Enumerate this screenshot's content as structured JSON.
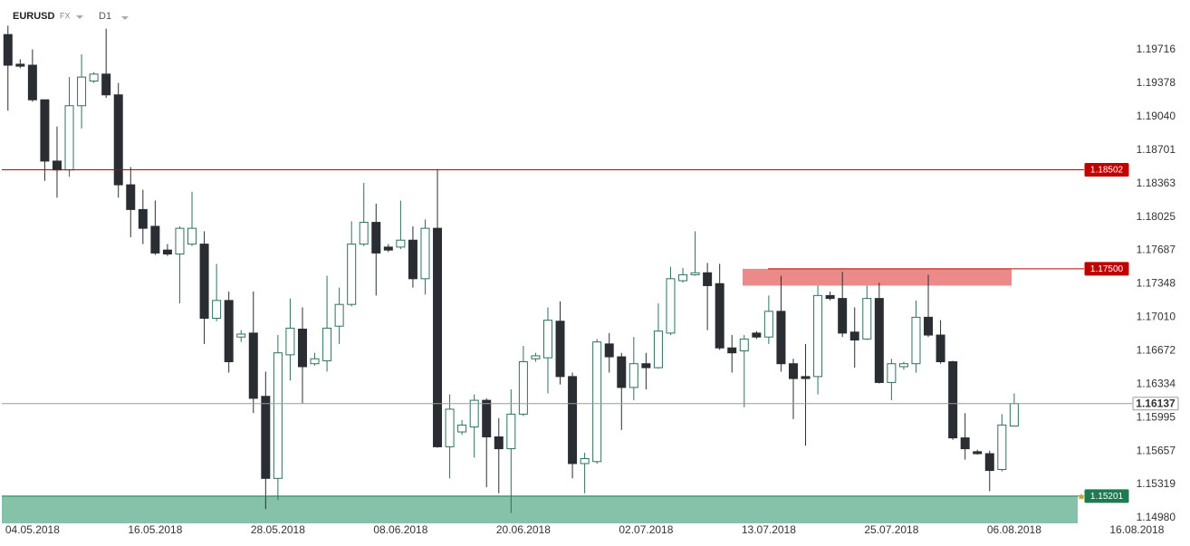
{
  "header": {
    "symbol": "EURUSD",
    "market": "FX",
    "timeframe": "D1"
  },
  "chart_data": {
    "type": "candlestick",
    "categories": [
      null,
      null,
      "04.05.2018",
      null,
      null,
      null,
      null,
      null,
      null,
      null,
      null,
      null,
      "16.05.2018",
      null,
      null,
      null,
      null,
      null,
      null,
      null,
      null,
      null,
      "28.05.2018",
      null,
      null,
      null,
      null,
      null,
      null,
      null,
      null,
      null,
      "08.06.2018",
      null,
      null,
      null,
      null,
      null,
      null,
      null,
      null,
      null,
      "20.06.2018",
      null,
      null,
      null,
      null,
      null,
      null,
      null,
      null,
      null,
      "02.07.2018",
      null,
      null,
      null,
      null,
      null,
      null,
      null,
      null,
      null,
      "13.07.2018",
      null,
      null,
      null,
      null,
      null,
      null,
      null,
      null,
      null,
      "25.07.2018",
      null,
      null,
      null,
      null,
      null,
      null,
      null,
      null,
      null,
      "06.08.2018",
      null,
      null,
      null,
      null,
      null,
      null,
      null,
      null,
      null,
      "16.08.2018",
      null,
      null
    ],
    "open": [
      1.1987,
      1.1957,
      1.1956,
      1.1921,
      1.1859,
      1.185,
      1.1915,
      1.194,
      1.1947,
      1.1926,
      1.1835,
      1.181,
      1.1793,
      1.1769,
      1.1765,
      1.1775,
      1.1775,
      1.17,
      1.1718,
      1.1681,
      1.1685,
      1.1621,
      1.1538,
      1.1663,
      1.1689,
      1.1654,
      1.1657,
      1.1692,
      1.1714,
      1.1775,
      1.1797,
      1.1772,
      1.1772,
      1.1779,
      1.174,
      1.1791,
      1.157,
      1.1585,
      1.159,
      1.1617,
      1.158,
      1.1568,
      1.1603,
      1.1659,
      1.166,
      1.1697,
      1.1641,
      1.1553,
      1.1555,
      1.1674,
      1.1661,
      1.163,
      1.1654,
      1.165,
      1.1685,
      1.1738,
      1.1744,
      1.1746,
      1.1735,
      1.167,
      1.1667,
      1.1685,
      1.1681,
      1.1707,
      1.1654,
      1.1641,
      1.1641,
      1.1723,
      1.172,
      1.1686,
      1.1679,
      1.172,
      1.1635,
      1.1651,
      1.1654,
      1.1701,
      1.1683,
      1.1656,
      1.1579,
      1.1565,
      1.1563,
      1.1547,
      1.1591,
      null,
      null,
      null,
      null,
      null,
      null,
      null,
      null,
      null,
      null,
      null,
      null
    ],
    "high": [
      1.1996,
      1.1962,
      1.1972,
      1.1921,
      1.1894,
      1.1944,
      1.1967,
      1.1949,
      1.1993,
      1.1938,
      1.1853,
      1.183,
      1.1819,
      1.1775,
      1.1793,
      1.1828,
      1.1788,
      1.1755,
      1.1727,
      1.1688,
      1.1727,
      1.1646,
      1.1683,
      1.172,
      1.1711,
      1.1665,
      1.1743,
      1.1731,
      1.1798,
      1.1837,
      1.1816,
      1.1775,
      1.1819,
      1.1793,
      1.18,
      1.1851,
      1.1623,
      1.1597,
      1.1623,
      1.1619,
      1.1599,
      1.1628,
      1.1672,
      1.1665,
      1.1711,
      1.1717,
      1.1645,
      1.1564,
      1.1679,
      1.1685,
      1.1665,
      1.1681,
      1.1665,
      1.1715,
      1.1752,
      1.1751,
      1.1788,
      1.1756,
      1.1755,
      1.1683,
      1.1683,
      1.1687,
      1.1723,
      1.1743,
      1.1659,
      1.1674,
      1.1733,
      1.1727,
      1.1747,
      1.1711,
      1.1733,
      1.1736,
      1.1659,
      1.1656,
      1.1718,
      1.1744,
      1.1698,
      1.1657,
      1.1604,
      1.1567,
      1.1566,
      1.1603,
      1.1624,
      null,
      null,
      null,
      null,
      null,
      null,
      null,
      null,
      null,
      null,
      null,
      null
    ],
    "low": [
      1.191,
      1.1953,
      1.1919,
      1.1839,
      1.1822,
      1.1843,
      1.1892,
      1.1938,
      1.1923,
      1.1822,
      1.1782,
      1.1775,
      1.1764,
      1.1763,
      1.1715,
      1.1773,
      1.1674,
      1.1697,
      1.1645,
      1.1676,
      1.1604,
      1.1507,
      1.1516,
      1.1637,
      1.1614,
      1.1652,
      1.1646,
      1.1674,
      1.1712,
      1.1773,
      1.1723,
      1.1767,
      1.177,
      1.1731,
      1.1724,
      1.1569,
      1.1538,
      1.1582,
      1.1559,
      1.1529,
      1.1523,
      1.1503,
      1.1601,
      1.1656,
      1.1624,
      1.1633,
      1.1538,
      1.1523,
      1.1553,
      1.1645,
      1.1587,
      1.1617,
      1.1628,
      1.1649,
      1.1683,
      1.1736,
      1.1743,
      1.1688,
      1.1668,
      1.1645,
      1.161,
      1.1679,
      1.1674,
      1.1646,
      1.1598,
      1.1571,
      1.1623,
      1.1718,
      1.1681,
      1.165,
      1.1678,
      1.1634,
      1.1617,
      1.1648,
      1.1645,
      1.1681,
      1.1654,
      1.1577,
      1.1557,
      1.1562,
      1.1525,
      1.1545,
      1.1591,
      null,
      null,
      null,
      null,
      null,
      null,
      null,
      null,
      null,
      null,
      null,
      null
    ],
    "close": [
      1.1956,
      1.1955,
      1.1921,
      1.1859,
      1.185,
      1.1915,
      1.1944,
      1.1947,
      1.1926,
      1.1835,
      1.181,
      1.1791,
      1.1766,
      1.1765,
      1.1791,
      1.1791,
      1.17,
      1.1718,
      1.1656,
      1.1684,
      1.1619,
      1.1538,
      1.1665,
      1.169,
      1.1651,
      1.1659,
      1.169,
      1.1714,
      1.1775,
      1.1797,
      1.1766,
      1.1769,
      1.1779,
      1.174,
      1.1791,
      1.157,
      1.1608,
      1.1592,
      1.1617,
      1.158,
      1.1568,
      1.1603,
      1.1656,
      1.1662,
      1.1698,
      1.1641,
      1.1553,
      1.1558,
      1.1676,
      1.1661,
      1.163,
      1.1654,
      1.165,
      1.1687,
      1.174,
      1.1744,
      1.1746,
      1.1733,
      1.167,
      1.1665,
      1.1679,
      1.1681,
      1.1707,
      1.1654,
      1.1639,
      1.1639,
      1.1723,
      1.172,
      1.1685,
      1.1678,
      1.172,
      1.1635,
      1.1654,
      1.1654,
      1.1701,
      1.1683,
      1.1656,
      1.1579,
      1.1568,
      1.1563,
      1.1546,
      1.1592,
      1.16137,
      null,
      null,
      null,
      null,
      null,
      null,
      null,
      null,
      null,
      null,
      null,
      null
    ],
    "up_color": "#2f7060",
    "down_color": "#2a2e33",
    "ylim": [
      1.14925,
      1.20128
    ],
    "yticks": [
      1.19716,
      1.19378,
      {
        "value": 1.1904,
        "label": "1.19040"
      },
      1.18701,
      1.18363,
      1.18025,
      1.17687,
      1.17348,
      {
        "value": 1.1701,
        "label": "1.17010"
      },
      1.16672,
      1.16334,
      1.15995,
      1.15657,
      1.15319,
      {
        "value": 1.1498,
        "label": "1.14980"
      }
    ],
    "levels": [
      {
        "value": 1.18502,
        "color": "#c00000"
      },
      {
        "value": 1.175,
        "label": "1.17500",
        "color": "#c00000"
      },
      {
        "value": 1.16137,
        "color": "#9a9a9a"
      },
      {
        "value": 1.15201,
        "color": "#1e7a52"
      }
    ],
    "zones": [
      {
        "from": 1.1733,
        "to": 1.175,
        "color": "#ec8a8a"
      },
      {
        "to": 1.15201,
        "color": "#86c1a9"
      }
    ]
  }
}
